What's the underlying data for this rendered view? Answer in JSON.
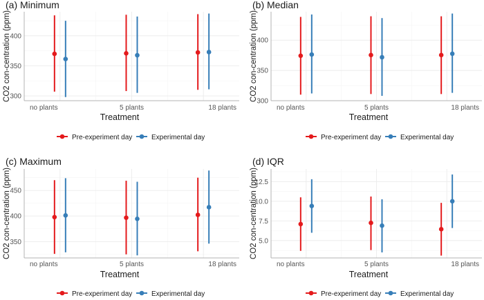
{
  "colors": {
    "pre": "#e41a1c",
    "exp": "#377eb8",
    "grid_major": "#ebebeb",
    "grid_minor": "#f5f5f5",
    "axis_line": "#b3b3b3",
    "tick_text": "#555555",
    "title_text": "#1a1a1a"
  },
  "chart_data": [
    {
      "type": "errorbar",
      "title": "(a) Minimum",
      "xlabel": "Treatment",
      "ylabel": "CO2 con-centration (ppm)",
      "categories": [
        "no plants",
        "5 plants",
        "18 plants"
      ],
      "ylim": [
        292,
        440
      ],
      "yticks": [
        300,
        350,
        400
      ],
      "series": [
        {
          "name": "Pre-experiment day",
          "color_key": "pre",
          "mean": [
            369.9,
            370.8,
            372.3
          ],
          "lower": [
            307,
            308,
            310
          ],
          "upper": [
            434,
            435,
            436
          ]
        },
        {
          "name": "Experimental day",
          "color_key": "exp",
          "mean": [
            361.3,
            367.6,
            372.9
          ],
          "lower": [
            298,
            305,
            311
          ],
          "upper": [
            425,
            432,
            437
          ]
        }
      ],
      "legend": [
        "Pre-experiment day",
        "Experimental day"
      ]
    },
    {
      "type": "errorbar",
      "title": "(b) Median",
      "xlabel": "Treatment",
      "ylabel": "CO2 con-centration (ppm)",
      "categories": [
        "no plants",
        "5 plants",
        "18 plants"
      ],
      "ylim": [
        300,
        447
      ],
      "yticks": [
        300,
        350,
        400
      ],
      "series": [
        {
          "name": "Pre-experiment day",
          "color_key": "pre",
          "mean": [
            374.3,
            375.4,
            375.4
          ],
          "lower": [
            310,
            311,
            311
          ],
          "upper": [
            438.5,
            439.5,
            439.5
          ]
        },
        {
          "name": "Experimental day",
          "color_key": "exp",
          "mean": [
            376.3,
            371.8,
            377.6
          ],
          "lower": [
            312,
            308,
            313
          ],
          "upper": [
            442.5,
            436.5,
            444
          ]
        }
      ],
      "legend": [
        "Pre-experiment day",
        "Experimental day"
      ]
    },
    {
      "type": "errorbar",
      "title": "(c) Maximum",
      "xlabel": "Treatment",
      "ylabel": "CO2 con-centration (ppm)",
      "categories": [
        "no plants",
        "5 plants",
        "18 plants"
      ],
      "ylim": [
        318,
        492
      ],
      "yticks": [
        350,
        400,
        450
      ],
      "series": [
        {
          "name": "Pre-experiment day",
          "color_key": "pre",
          "mean": [
            397.8,
            396.7,
            402.3
          ],
          "lower": [
            326,
            325,
            331
          ],
          "upper": [
            470,
            469,
            475
          ]
        },
        {
          "name": "Experimental day",
          "color_key": "exp",
          "mean": [
            401.2,
            394.5,
            417.2
          ],
          "lower": [
            329,
            323,
            346
          ],
          "upper": [
            474,
            467,
            489
          ]
        }
      ],
      "legend": [
        "Pre-experiment day",
        "Experimental day"
      ]
    },
    {
      "type": "errorbar",
      "title": "(d) IQR",
      "xlabel": "Treatment",
      "ylabel": "CO2 con-centration (ppm)",
      "categories": [
        "no plants",
        "5 plants",
        "18 plants"
      ],
      "ylim": [
        2.8,
        14.1
      ],
      "yticks": [
        5.0,
        7.5,
        10.0,
        12.5
      ],
      "ytick_labels": [
        "5.0",
        "7.5",
        "10.0",
        "12.5"
      ],
      "series": [
        {
          "name": "Pre-experiment day",
          "color_key": "pre",
          "mean": [
            7.1,
            7.25,
            6.45
          ],
          "lower": [
            3.7,
            3.8,
            3.1
          ],
          "upper": [
            10.5,
            10.6,
            9.8
          ]
        },
        {
          "name": "Experimental day",
          "color_key": "exp",
          "mean": [
            9.4,
            6.9,
            10.0
          ],
          "lower": [
            6.0,
            3.5,
            6.6
          ],
          "upper": [
            12.8,
            10.25,
            13.4
          ]
        }
      ],
      "legend": [
        "Pre-experiment day",
        "Experimental day"
      ]
    }
  ]
}
